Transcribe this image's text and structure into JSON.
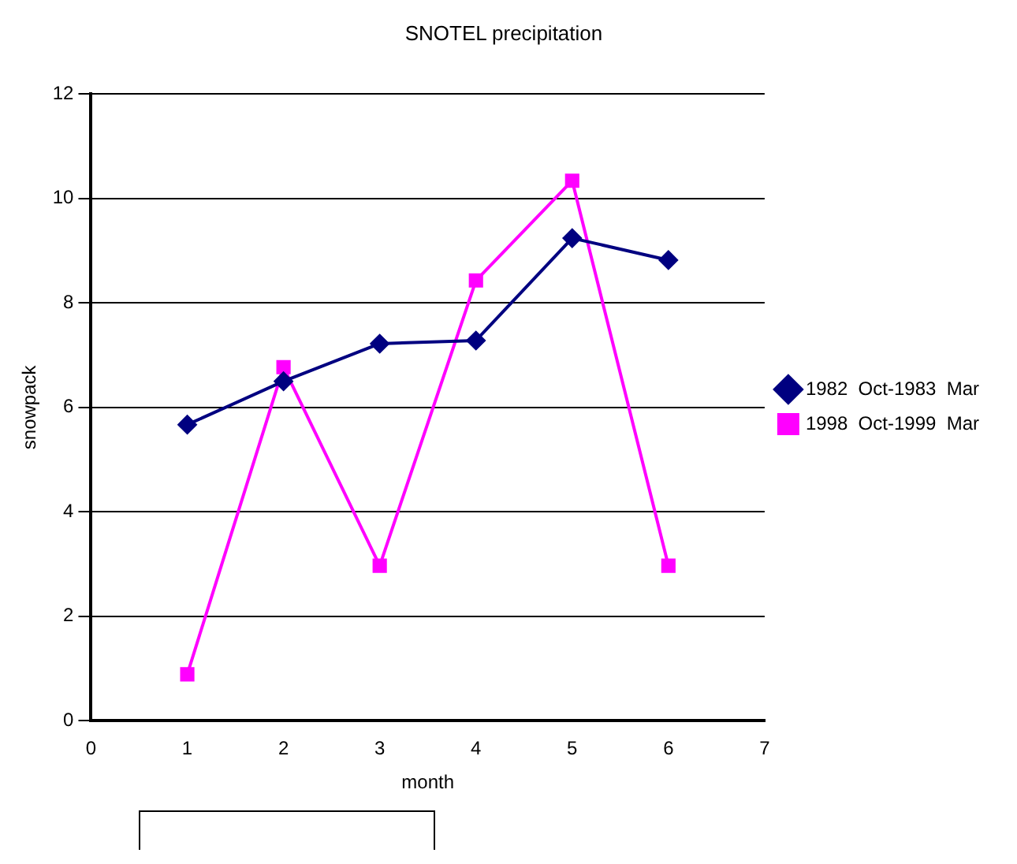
{
  "chart_data": {
    "type": "line",
    "title": "SNOTEL precipitation",
    "xlabel": "month",
    "ylabel": "snowpack",
    "x": [
      1,
      2,
      3,
      4,
      5,
      6
    ],
    "series": [
      {
        "name": "1982  Oct-1983  Mar",
        "color": "#000080",
        "marker": "diamond",
        "values": [
          5.67,
          6.5,
          7.22,
          7.28,
          9.24,
          8.82
        ]
      },
      {
        "name": "1998  Oct-1999  Mar",
        "color": "#ff00ff",
        "marker": "square",
        "values": [
          0.89,
          6.77,
          2.97,
          8.43,
          10.34,
          2.97
        ]
      }
    ],
    "xlim": [
      0,
      7
    ],
    "xticks": [
      0,
      1,
      2,
      3,
      4,
      5,
      6,
      7
    ],
    "ylim": [
      0,
      12
    ],
    "yticks": [
      0,
      2,
      4,
      6,
      8,
      10,
      12
    ],
    "grid": "y",
    "legend": "right",
    "line_style": "solid"
  }
}
